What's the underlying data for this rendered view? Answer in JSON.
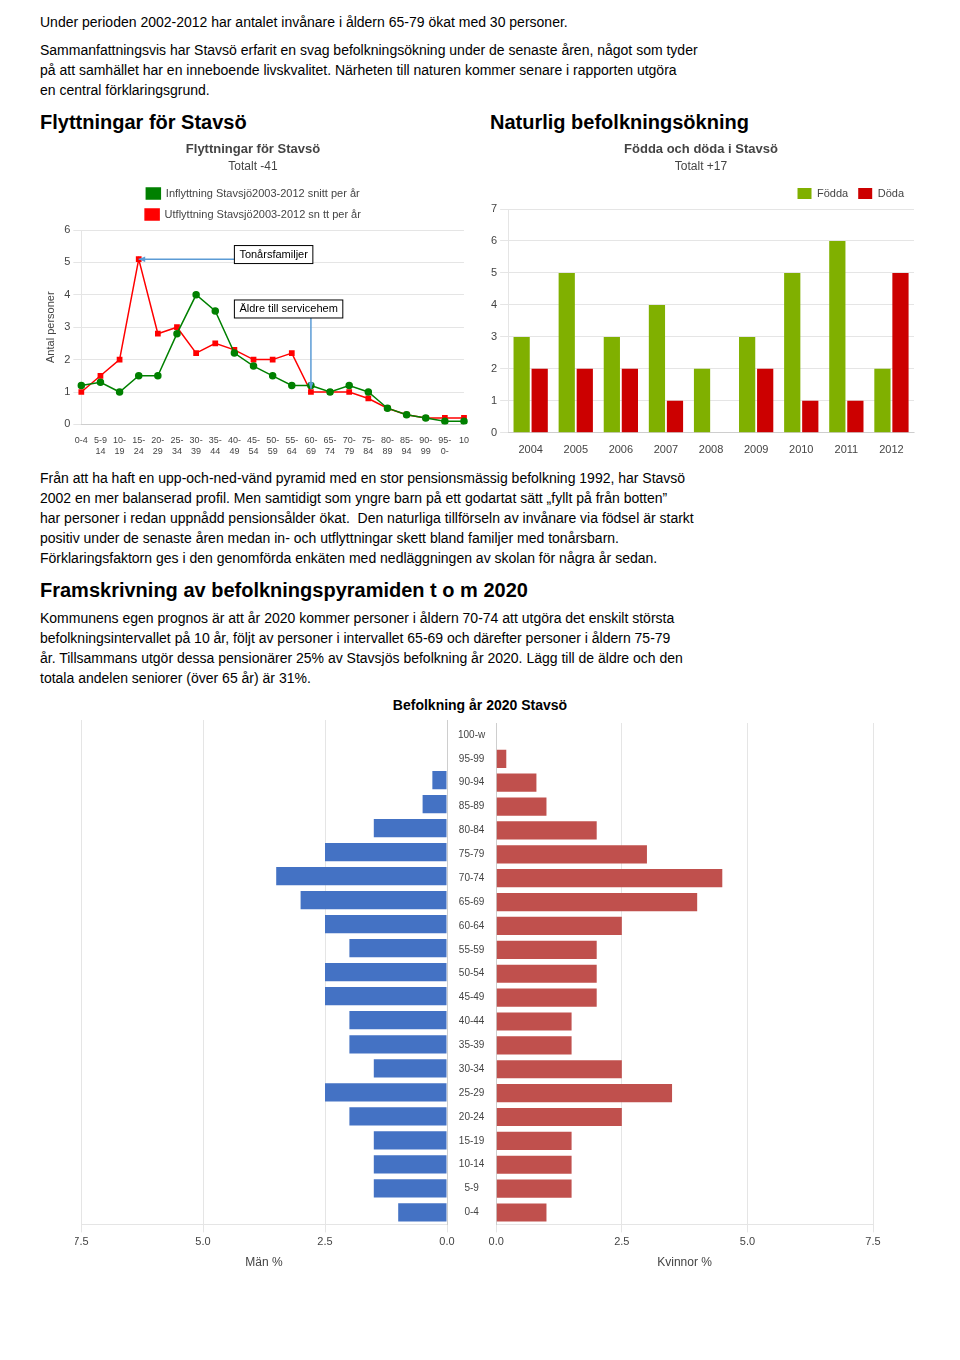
{
  "intro": [
    "Under perioden 2002-2012 har antalet invånare i åldern 65-79 ökat med 30 personer.",
    "Sammanfattningsvis har Stavsö erfarit en svag befolkningsökning under de senaste åren, något som tyder\npå att samhället har en inneboende livskvalitet. Närheten till naturen kommer senare i rapporten utgöra\nen central förklaringsgrund."
  ],
  "section_titles": [
    "Flyttningar för Stavsö",
    "Naturlig befolkningsökning"
  ],
  "body_text": "Från att ha haft en upp-och-ned-vänd pyramid med en stor pensionsmässig befolkning 1992, har Stavsö\n2002 en mer balanserad profil. Men samtidigt som yngre barn på ett godartat sätt „fyllt på från botten”\nhar personer i redan uppnådd pensionsålder ökat.  Den naturliga tillförseln av invånare via födsel är starkt\npositiv under de senaste åren medan in- och utflyttningar skett bland familjer med tonårsbarn.\nFörklaringsfaktorn ges i den genomförda enkäten med nedläggningen av skolan för några år sedan.",
  "section3_title": "Framskrivning av befolkningspyramiden t o m 2020",
  "outlook_text": "Kommunens egen prognos är att år 2020 kommer personer i åldern 70-74 att utgöra det enskilt största\nbefolkningsintervallet på 10 år, följt av personer i intervallet 65-69 och därefter personer i åldern 75-79\når. Tillsammans utgör dessa pensionärer 25% av Stavsjös befolkning år 2020. Lägg till de äldre och den\ntotala andelen seniorer (över 65 år) är 31%.",
  "chart_data": [
    {
      "type": "line",
      "title": "Flyttningar för Stavsö",
      "subtitle": "Totalt -41",
      "ylabel": "Antal personer",
      "categories": [
        "0-4",
        "5-9\n14",
        "10-\n19",
        "15-\n24",
        "20-\n29",
        "25-\n34",
        "30-\n39",
        "35-\n44",
        "40-\n49",
        "45-\n54",
        "50-\n59",
        "55-\n64",
        "60-\n69",
        "65-\n74",
        "70-\n79",
        "75-\n84",
        "80-\n89",
        "85-\n94",
        "90-\n99",
        "95-\n0-",
        "10"
      ],
      "series": [
        {
          "name": "Inflyttning Stavsjö2003-2012 snitt per år",
          "color": "green",
          "marker": "circle",
          "values": [
            1.2,
            1.3,
            1.0,
            1.5,
            1.5,
            2.8,
            4.0,
            3.5,
            2.2,
            1.8,
            1.5,
            1.2,
            1.2,
            1.0,
            1.2,
            1.0,
            0.5,
            0.3,
            0.2,
            0.1,
            0.1
          ]
        },
        {
          "name": "Utflyttning Stavsjö2003-2012 sn tt per år",
          "color": "red",
          "marker": "square",
          "values": [
            1.0,
            1.5,
            2.0,
            5.1,
            2.8,
            3.0,
            2.2,
            2.5,
            2.3,
            2.0,
            2.0,
            2.2,
            1.0,
            1.0,
            1.0,
            0.8,
            0.5,
            0.3,
            0.2,
            0.2,
            0.2
          ]
        }
      ],
      "ylim": [
        0,
        6
      ],
      "yticks": [
        0,
        1,
        2,
        3,
        4,
        5,
        6
      ],
      "grid": "y",
      "legend": "upper center",
      "annotations": [
        {
          "text": "Tonårsfamiljer",
          "x": "15-\n24",
          "y": 5.1
        },
        {
          "text": "Äldre till servicehem",
          "x": "60-\n69",
          "y": 1.1
        }
      ]
    },
    {
      "type": "bar",
      "title": "Födda och döda i Stavsö",
      "subtitle": "Totalt +17",
      "categories": [
        "2004",
        "2005",
        "2006",
        "2007",
        "2008",
        "2009",
        "2010",
        "2011",
        "2012"
      ],
      "series": [
        {
          "name": "Födda",
          "color": "#80b000",
          "values": [
            3,
            5,
            3,
            4,
            2,
            3,
            5,
            6,
            2
          ]
        },
        {
          "name": "Döda",
          "color": "#cc0000",
          "values": [
            2,
            2,
            2,
            1,
            0,
            2,
            1,
            1,
            5
          ]
        }
      ],
      "ylim": [
        0,
        7
      ],
      "yticks": [
        0,
        1,
        2,
        3,
        4,
        5,
        6,
        7
      ],
      "grid": "y",
      "legend": "upper right"
    },
    {
      "type": "pyramid",
      "title": "Befolkning år 2020 Stavsö",
      "orientation": "horizontal",
      "categories": [
        "0-4",
        "5-9",
        "10-14",
        "15-19",
        "20-24",
        "25-29",
        "30-34",
        "35-39",
        "40-44",
        "45-49",
        "50-54",
        "55-59",
        "60-64",
        "65-69",
        "70-74",
        "75-79",
        "80-84",
        "85-89",
        "90-94",
        "95-99",
        "100-w"
      ],
      "series": [
        {
          "name": "Män %",
          "color": "#4472c4",
          "values": [
            1.0,
            1.5,
            1.5,
            1.5,
            2.0,
            2.5,
            1.5,
            2.0,
            2.0,
            2.5,
            2.5,
            2.0,
            2.5,
            3.0,
            3.5,
            2.5,
            1.5,
            0.5,
            0.3,
            0.0,
            0.0
          ]
        },
        {
          "name": "Kvinnor %",
          "color": "#c0504d",
          "values": [
            1.0,
            1.5,
            1.5,
            1.5,
            2.5,
            3.5,
            2.5,
            1.5,
            1.5,
            2.0,
            2.0,
            2.0,
            2.5,
            4.0,
            4.5,
            3.0,
            2.0,
            1.0,
            0.8,
            0.2,
            0.0
          ]
        }
      ],
      "xlim": [
        0,
        7.5
      ],
      "xticks": [
        {
          "value": 0,
          "label": "0.0"
        },
        2.5,
        {
          "value": 5,
          "label": "5.0"
        },
        7.5
      ],
      "grid": "x",
      "legend": false
    }
  ]
}
